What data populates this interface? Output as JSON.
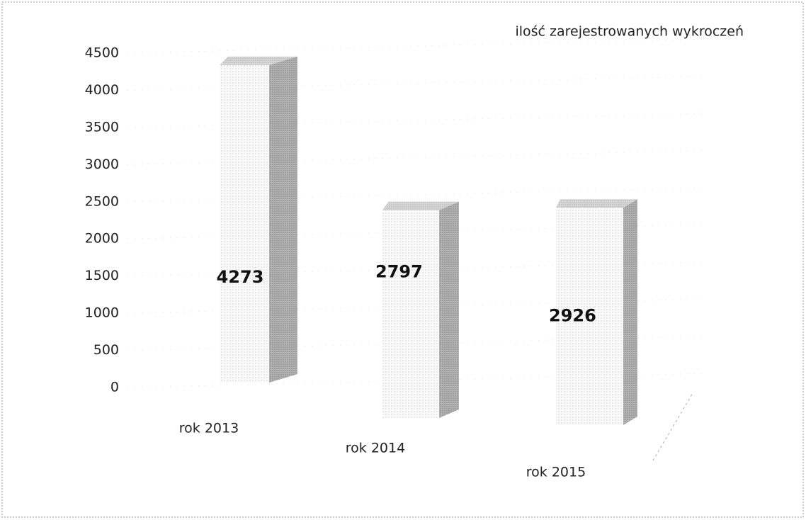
{
  "chart_data": {
    "type": "bar3d",
    "categories": [
      "rok 2013",
      "rok 2014",
      "rok 2015"
    ],
    "series": [
      {
        "name": "ilość zarejestrowanych wykroczeń",
        "color": "#bdbdbd",
        "values": [
          4273,
          2797,
          2926
        ]
      }
    ],
    "ylim": [
      0,
      4500
    ],
    "yticks": [
      0,
      500,
      1000,
      1500,
      2000,
      2500,
      3000,
      3500,
      4000,
      4500
    ]
  }
}
